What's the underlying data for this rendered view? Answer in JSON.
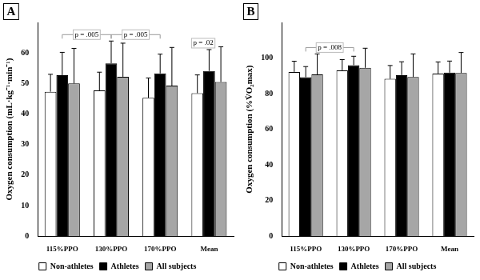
{
  "chart_data": [
    {
      "type": "bar",
      "title": "A",
      "y_label": "Oxygen consumption (mL·kg⁻¹·min⁻¹)",
      "categories": [
        "115%PPO",
        "130%PPO",
        "170%PPO",
        "Mean"
      ],
      "series": [
        {
          "name": "Non-athletes",
          "color": "#ffffff",
          "values": [
            47.3,
            47.7,
            45.3,
            46.8
          ],
          "errors": [
            5.7,
            6.0,
            6.5,
            6.0
          ]
        },
        {
          "name": "Athletes",
          "color": "#000000",
          "values": [
            52.7,
            56.6,
            53.3,
            54.1
          ],
          "errors": [
            7.5,
            7.3,
            6.3,
            7.0
          ]
        },
        {
          "name": "All subjects",
          "color": "#a6a6a6",
          "values": [
            50.0,
            52.2,
            49.3,
            50.5
          ],
          "errors": [
            11.5,
            11.0,
            12.5,
            11.5
          ]
        }
      ],
      "ylim": [
        0,
        70
      ],
      "yticks": [
        0,
        10,
        20,
        30,
        40,
        50,
        60
      ],
      "grid": false,
      "legend": "bottom",
      "annotations": [
        {
          "text": "p = .005",
          "from": {
            "category": "115%PPO",
            "series": "Athletes"
          },
          "to": {
            "category": "130%PPO",
            "series": "Athletes"
          }
        },
        {
          "text": "p = .005",
          "from": {
            "category": "130%PPO",
            "series": "Athletes"
          },
          "to": {
            "category": "170%PPO",
            "series": "Athletes"
          }
        },
        {
          "text": "p = .02",
          "from": {
            "category": "Mean",
            "series": "Non-athletes"
          },
          "to": {
            "category": "Mean",
            "series": "Athletes"
          }
        }
      ]
    },
    {
      "type": "bar",
      "title": "B",
      "y_label": "Oxygen consumption (%V̇O₂max)",
      "categories": [
        "115%PPO",
        "130%PPO",
        "170%PPO",
        "Mean"
      ],
      "series": [
        {
          "name": "Non-athletes",
          "color": "#ffffff",
          "values": [
            92.2,
            93.1,
            88.3,
            91.3
          ],
          "errors": [
            6.0,
            6.0,
            7.5,
            6.5
          ]
        },
        {
          "name": "Athletes",
          "color": "#000000",
          "values": [
            89.2,
            96.0,
            90.4,
            91.8
          ],
          "errors": [
            6.0,
            5.0,
            7.5,
            6.5
          ]
        },
        {
          "name": "All subjects",
          "color": "#a6a6a6",
          "values": [
            90.8,
            94.5,
            89.3,
            91.6
          ],
          "errors": [
            11.5,
            11.0,
            13.0,
            11.5
          ]
        }
      ],
      "ylim": [
        0,
        120
      ],
      "yticks": [
        0,
        20,
        40,
        60,
        80,
        100
      ],
      "grid": false,
      "legend": "bottom",
      "annotations": [
        {
          "text": "p = .008",
          "from": {
            "category": "115%PPO",
            "series": "Athletes"
          },
          "to": {
            "category": "130%PPO",
            "series": "Athletes"
          }
        }
      ]
    }
  ]
}
